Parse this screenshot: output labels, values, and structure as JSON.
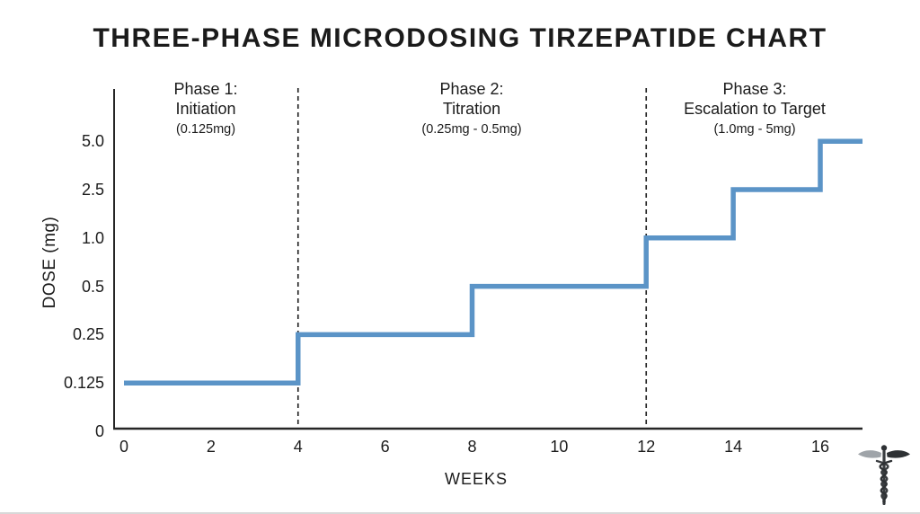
{
  "title": "THREE-PHASE MICRODOSING TIRZEPATIDE CHART",
  "colors": {
    "line": "#5b94c7",
    "axis": "#262626",
    "divider": "#1b1b1b",
    "text": "#1c1c1c"
  },
  "phases": [
    {
      "name": "Phase 1:",
      "subtitle": "Initiation",
      "range": "(0.125mg)",
      "start_week": 0,
      "end_week": 4
    },
    {
      "name": "Phase 2:",
      "subtitle": "Titration",
      "range": "(0.25mg - 0.5mg)",
      "start_week": 4,
      "end_week": 12
    },
    {
      "name": "Phase 3:",
      "subtitle": "Escalation to Target",
      "range": "(1.0mg - 5mg)",
      "start_week": 12,
      "end_week": 17
    }
  ],
  "chart_data": {
    "type": "line",
    "style": "step",
    "title": "THREE-PHASE MICRODOSING TIRZEPATIDE CHART",
    "xlabel": "WEEKS",
    "ylabel": "DOSE (mg)",
    "x_ticks": [
      0,
      2,
      4,
      6,
      8,
      10,
      12,
      14,
      16
    ],
    "xlim": [
      0,
      17
    ],
    "y_ticks": [
      0,
      0.125,
      0.25,
      0.5,
      1.0,
      2.5,
      5.0
    ],
    "y_tick_labels": [
      "0",
      "0.125",
      "0.25",
      "0.5",
      "1.0",
      "2.5",
      "5.0"
    ],
    "y_scale": "categorical-even-spacing",
    "grid": false,
    "legend": "none",
    "segments": [
      {
        "from_week": 0,
        "to_week": 4,
        "dose": 0.125
      },
      {
        "from_week": 4,
        "to_week": 8,
        "dose": 0.25
      },
      {
        "from_week": 8,
        "to_week": 12,
        "dose": 0.5
      },
      {
        "from_week": 12,
        "to_week": 14,
        "dose": 1.0
      },
      {
        "from_week": 14,
        "to_week": 16,
        "dose": 2.5
      },
      {
        "from_week": 16,
        "to_week": 17,
        "dose": 5.0
      }
    ],
    "phase_dividers_weeks": [
      4,
      12
    ],
    "line_color": "#5b94c7"
  },
  "footer": {
    "icon": "caduceus-icon"
  }
}
